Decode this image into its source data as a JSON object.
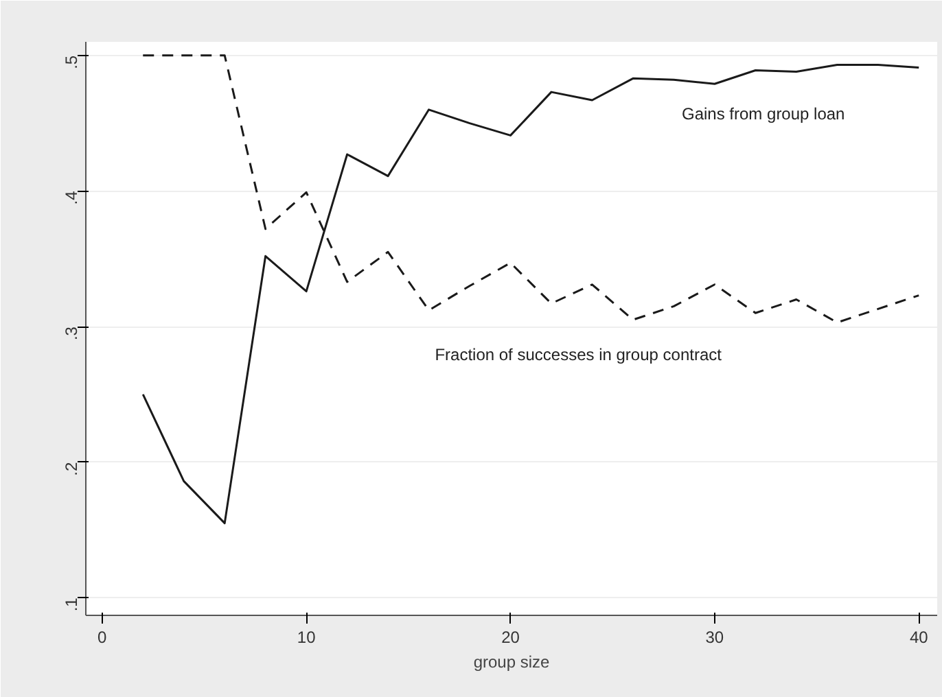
{
  "chart_data": {
    "type": "line",
    "xlabel": "group size",
    "x": [
      2,
      4,
      6,
      8,
      10,
      12,
      14,
      16,
      18,
      20,
      22,
      24,
      26,
      28,
      30,
      32,
      34,
      36,
      38,
      40
    ],
    "series": [
      {
        "name": "Gains from group loan",
        "color": "#1a1a1a",
        "line_style": "solid",
        "values": [
          0.25,
          0.186,
          0.155,
          0.352,
          0.326,
          0.427,
          0.411,
          0.46,
          0.45,
          0.441,
          0.473,
          0.467,
          0.483,
          0.482,
          0.479,
          0.489,
          0.488,
          0.493,
          0.493,
          0.491
        ]
      },
      {
        "name": "Fraction of successes in group contract",
        "color": "#1a1a1a",
        "line_style": "dashed",
        "values": [
          0.5,
          0.5,
          0.5,
          0.372,
          0.399,
          0.333,
          0.355,
          0.312,
          0.33,
          0.347,
          0.317,
          0.331,
          0.305,
          0.315,
          0.331,
          0.31,
          0.32,
          0.303,
          0.313,
          0.323
        ]
      }
    ],
    "xlim": [
      -0.8,
      40.9
    ],
    "ylim": [
      0.087,
      0.51
    ],
    "xticks": [
      0,
      10,
      20,
      30,
      40
    ],
    "yticks": [
      {
        "value": 0.1,
        "label": ".1"
      },
      {
        "value": 0.2,
        "label": ".2"
      },
      {
        "value": 0.3,
        "label": ".3"
      },
      {
        "value": 0.4,
        "label": ".4"
      },
      {
        "value": 0.5,
        "label": ".5"
      }
    ],
    "grid": "y",
    "marker": "none"
  }
}
